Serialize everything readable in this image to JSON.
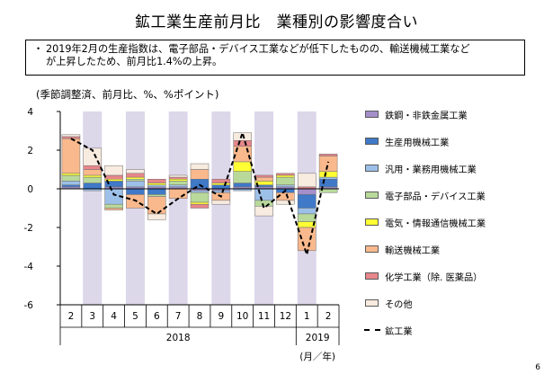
{
  "title": "鉱工業生産前月比　業種別の影響度合い",
  "note": {
    "bullet": "・",
    "line1": "2019年2月の生産指数は、電子部品・デバイス工業などが低下したものの、輸送機械工業など",
    "line2": "が上昇したため、前月比1.4%の上昇。"
  },
  "page_number": "6",
  "chart_data": {
    "type": "bar",
    "stacked": true,
    "ylabel": "(季節調整済、前月比、%、%ポイント)",
    "ylim": [
      -6,
      4
    ],
    "yticks": [
      4,
      2,
      0,
      -2,
      -4,
      -6
    ],
    "categories": [
      "2",
      "3",
      "4",
      "5",
      "6",
      "7",
      "8",
      "9",
      "10",
      "11",
      "12",
      "1",
      "2"
    ],
    "year_labels": [
      {
        "label": "2018",
        "from": 0,
        "to": 10
      },
      {
        "label": "2019",
        "from": 11,
        "to": 12
      }
    ],
    "x_unit": "(月／年)",
    "shaded_categories": [
      1,
      3,
      5,
      7,
      9,
      11
    ],
    "colors": {
      "shade": "#ddd7ea",
      "bar_edge": "#6f6f6f"
    },
    "series": [
      {
        "name": "鉄鋼・非鉄金属工業",
        "color": "#a58fca",
        "values": [
          0.1,
          0.0,
          0.1,
          0.1,
          0.1,
          0.1,
          -0.1,
          -0.1,
          0.1,
          0.1,
          0.1,
          -0.3,
          0.1
        ]
      },
      {
        "name": "生産用機械工業",
        "color": "#3f79c8",
        "values": [
          0.1,
          0.3,
          0.3,
          -0.3,
          -0.3,
          0.0,
          0.5,
          0.2,
          0.2,
          0.1,
          -0.2,
          -0.7,
          0.4
        ]
      },
      {
        "name": "汎用・業務用機械工業",
        "color": "#9cc0e8",
        "values": [
          0.2,
          -0.1,
          -0.8,
          0.3,
          0.1,
          0.1,
          -0.1,
          -0.1,
          -0.1,
          -0.6,
          0.1,
          -0.3,
          0.1
        ]
      },
      {
        "name": "電子部品・デバイス工業",
        "color": "#b9d99b",
        "values": [
          0.3,
          0.3,
          -0.2,
          0.1,
          -0.1,
          0.2,
          -0.5,
          0.0,
          0.6,
          -0.3,
          0.4,
          -0.4,
          -0.2
        ]
      },
      {
        "name": "電気・情報通信機械工業",
        "color": "#ffff33",
        "values": [
          0.1,
          0.1,
          0.1,
          0.1,
          0.1,
          0.1,
          -0.1,
          0.1,
          0.5,
          0.2,
          0.1,
          -0.3,
          0.3
        ]
      },
      {
        "name": "輸送機械工業",
        "color": "#f9b98d",
        "values": [
          1.8,
          0.3,
          -0.1,
          -0.7,
          -0.9,
          -0.5,
          0.5,
          -0.4,
          0.8,
          0.2,
          -0.4,
          -1.2,
          0.8
        ]
      },
      {
        "name": "化学工業（除. 医薬品）",
        "color": "#e7868b",
        "values": [
          0.1,
          0.2,
          0.2,
          0.2,
          0.2,
          0.1,
          -0.2,
          0.2,
          0.3,
          0.1,
          0.1,
          0.1,
          0.1
        ]
      },
      {
        "name": "その他",
        "color": "#f8ebdf",
        "values": [
          0.1,
          0.9,
          0.5,
          0.2,
          -0.3,
          0.1,
          0.3,
          -0.2,
          0.4,
          -0.5,
          -0.2,
          0.7,
          0.0
        ]
      }
    ],
    "line": {
      "name": "鉱工業",
      "values": [
        2.6,
        2.0,
        -0.3,
        -0.6,
        -1.3,
        -0.5,
        0.2,
        -0.4,
        2.9,
        -1.0,
        -0.1,
        -3.4,
        1.4
      ]
    }
  }
}
